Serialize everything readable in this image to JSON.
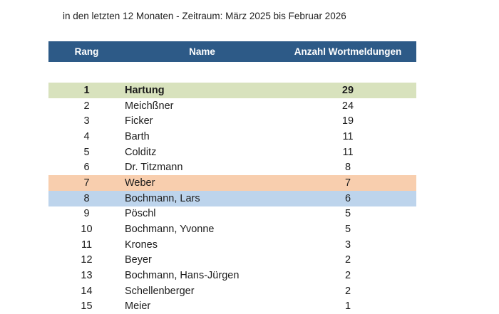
{
  "title": "in den letzten 12 Monaten - Zeitraum: März 2025 bis Februar 2026",
  "colors": {
    "header_bg": "#2D5A87",
    "header_text": "#FFFFFF",
    "highlight_green": "#D8E2BD",
    "highlight_orange": "#F8CEAE",
    "highlight_blue": "#BDD4EC",
    "body_text": "#1C1C1C"
  },
  "table": {
    "headers": [
      "Rang",
      "Name",
      "Anzahl Wortmeldungen"
    ],
    "rows": [
      {
        "rank": "1",
        "name": "Hartung",
        "count": "29",
        "highlight": "green",
        "bold": true
      },
      {
        "rank": "2",
        "name": "Meichßner",
        "count": "24",
        "highlight": null,
        "bold": false
      },
      {
        "rank": "3",
        "name": "Ficker",
        "count": "19",
        "highlight": null,
        "bold": false
      },
      {
        "rank": "4",
        "name": "Barth",
        "count": "11",
        "highlight": null,
        "bold": false
      },
      {
        "rank": "5",
        "name": "Colditz",
        "count": "11",
        "highlight": null,
        "bold": false
      },
      {
        "rank": "6",
        "name": "Dr. Titzmann",
        "count": "8",
        "highlight": null,
        "bold": false
      },
      {
        "rank": "7",
        "name": "Weber",
        "count": "7",
        "highlight": "orange",
        "bold": false
      },
      {
        "rank": "8",
        "name": "Bochmann, Lars",
        "count": "6",
        "highlight": "blue",
        "bold": false
      },
      {
        "rank": "9",
        "name": "Pöschl",
        "count": "5",
        "highlight": null,
        "bold": false
      },
      {
        "rank": "10",
        "name": "Bochmann, Yvonne",
        "count": "5",
        "highlight": null,
        "bold": false
      },
      {
        "rank": "11",
        "name": "Krones",
        "count": "3",
        "highlight": null,
        "bold": false
      },
      {
        "rank": "12",
        "name": "Beyer",
        "count": "2",
        "highlight": null,
        "bold": false
      },
      {
        "rank": "13",
        "name": "Bochmann, Hans-Jürgen",
        "count": "2",
        "highlight": null,
        "bold": false
      },
      {
        "rank": "14",
        "name": "Schellenberger",
        "count": "2",
        "highlight": null,
        "bold": false
      },
      {
        "rank": "15",
        "name": "Meier",
        "count": "1",
        "highlight": null,
        "bold": false
      }
    ]
  }
}
